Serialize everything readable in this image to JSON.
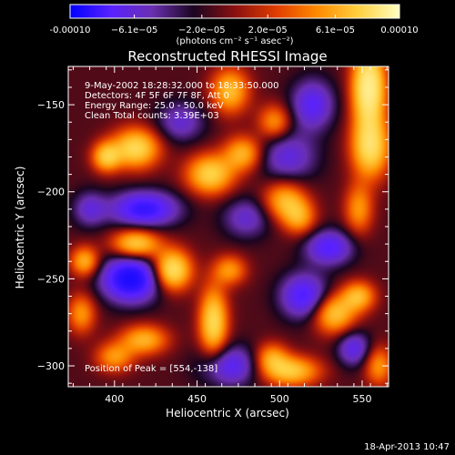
{
  "chart_data": {
    "type": "heatmap",
    "title": "Reconstructed RHESSI Image",
    "xlabel": "Heliocentric X (arcsec)",
    "ylabel": "Heliocentric Y (arcsec)",
    "xlim": [
      372,
      566
    ],
    "ylim": [
      -312,
      -128
    ],
    "xticks": [
      400,
      450,
      500,
      550
    ],
    "yticks": [
      -300,
      -250,
      -200,
      -150
    ],
    "colorbar": {
      "min": -0.0001,
      "max": 0.0001,
      "tick_labels": [
        "-0.00010",
        "−6.1e−05",
        "−2.0e−05",
        "2.0e−05",
        "6.1e−05",
        "0.00010"
      ],
      "tick_values": [
        -0.0001,
        -6.1e-05,
        -2e-05,
        2e-05,
        6.1e-05,
        0.0001
      ],
      "unit_label": "(photons cm⁻² s⁻¹ asec⁻²)",
      "colors": [
        "#0000ff",
        "#5a22ff",
        "#6a2fb0",
        "#1a0520",
        "#8a1010",
        "#e03c00",
        "#ff8a00",
        "#ffd040",
        "#ffffc0"
      ]
    },
    "annotations": [
      "9-May-2002 18:28:32.000 to 18:33:50.000",
      "Detectors: 4F 5F 6F 7F 8F, Att 0",
      "Energy Range: 25.0 - 50.0 keV",
      "Clean    Total counts: 3.39E+03"
    ],
    "peak_label": "Position of Peak = [554,-138]",
    "peak": {
      "x": 554,
      "y": -138
    },
    "sources": [
      {
        "x": 554,
        "y": -140,
        "value": 1.0,
        "sx": 7,
        "sy": 16
      },
      {
        "x": 555,
        "y": -175,
        "value": 0.75,
        "sx": 8,
        "sy": 12
      },
      {
        "x": 548,
        "y": -210,
        "value": 0.45,
        "sx": 6,
        "sy": 10
      },
      {
        "x": 413,
        "y": -175,
        "value": 0.75,
        "sx": 10,
        "sy": 8
      },
      {
        "x": 395,
        "y": -180,
        "value": 0.6,
        "sx": 6,
        "sy": 6
      },
      {
        "x": 470,
        "y": -142,
        "value": 0.6,
        "sx": 8,
        "sy": 9
      },
      {
        "x": 458,
        "y": -190,
        "value": 0.7,
        "sx": 10,
        "sy": 8
      },
      {
        "x": 478,
        "y": -178,
        "value": 0.55,
        "sx": 8,
        "sy": 7
      },
      {
        "x": 497,
        "y": -160,
        "value": 0.45,
        "sx": 7,
        "sy": 7
      },
      {
        "x": 503,
        "y": -205,
        "value": 0.55,
        "sx": 9,
        "sy": 8
      },
      {
        "x": 512,
        "y": -215,
        "value": 0.45,
        "sx": 7,
        "sy": 7
      },
      {
        "x": 413,
        "y": -230,
        "value": 0.7,
        "sx": 10,
        "sy": 6
      },
      {
        "x": 435,
        "y": -245,
        "value": 0.85,
        "sx": 8,
        "sy": 8
      },
      {
        "x": 470,
        "y": -245,
        "value": 0.45,
        "sx": 7,
        "sy": 6
      },
      {
        "x": 382,
        "y": -240,
        "value": 0.55,
        "sx": 6,
        "sy": 6
      },
      {
        "x": 380,
        "y": -270,
        "value": 0.45,
        "sx": 6,
        "sy": 8
      },
      {
        "x": 460,
        "y": -275,
        "value": 0.75,
        "sx": 6,
        "sy": 14
      },
      {
        "x": 418,
        "y": -285,
        "value": 0.55,
        "sx": 10,
        "sy": 6
      },
      {
        "x": 400,
        "y": -295,
        "value": 0.45,
        "sx": 8,
        "sy": 6
      },
      {
        "x": 533,
        "y": -270,
        "value": 0.65,
        "sx": 9,
        "sy": 8
      },
      {
        "x": 548,
        "y": -260,
        "value": 0.55,
        "sx": 7,
        "sy": 6
      },
      {
        "x": 507,
        "y": -303,
        "value": 0.65,
        "sx": 12,
        "sy": 6
      },
      {
        "x": 495,
        "y": -295,
        "value": 0.45,
        "sx": 7,
        "sy": 6
      },
      {
        "x": 560,
        "y": -300,
        "value": 0.45,
        "sx": 6,
        "sy": 8
      },
      {
        "x": 410,
        "y": -250,
        "value": -0.9,
        "sx": 12,
        "sy": 9
      },
      {
        "x": 418,
        "y": -210,
        "value": -0.7,
        "sx": 14,
        "sy": 7
      },
      {
        "x": 515,
        "y": -260,
        "value": -0.6,
        "sx": 10,
        "sy": 9
      },
      {
        "x": 530,
        "y": -232,
        "value": -0.55,
        "sx": 10,
        "sy": 7
      },
      {
        "x": 505,
        "y": -180,
        "value": -0.4,
        "sx": 12,
        "sy": 10
      },
      {
        "x": 470,
        "y": -300,
        "value": -0.5,
        "sx": 12,
        "sy": 8
      },
      {
        "x": 520,
        "y": -150,
        "value": -0.5,
        "sx": 9,
        "sy": 10
      },
      {
        "x": 545,
        "y": -290,
        "value": -0.45,
        "sx": 7,
        "sy": 7
      },
      {
        "x": 480,
        "y": -215,
        "value": -0.35,
        "sx": 10,
        "sy": 8
      },
      {
        "x": 440,
        "y": -160,
        "value": -0.35,
        "sx": 10,
        "sy": 8
      },
      {
        "x": 385,
        "y": -210,
        "value": -0.35,
        "sx": 7,
        "sy": 7
      }
    ]
  },
  "footer": {
    "date_stamp": "18-Apr-2013 10:47"
  }
}
